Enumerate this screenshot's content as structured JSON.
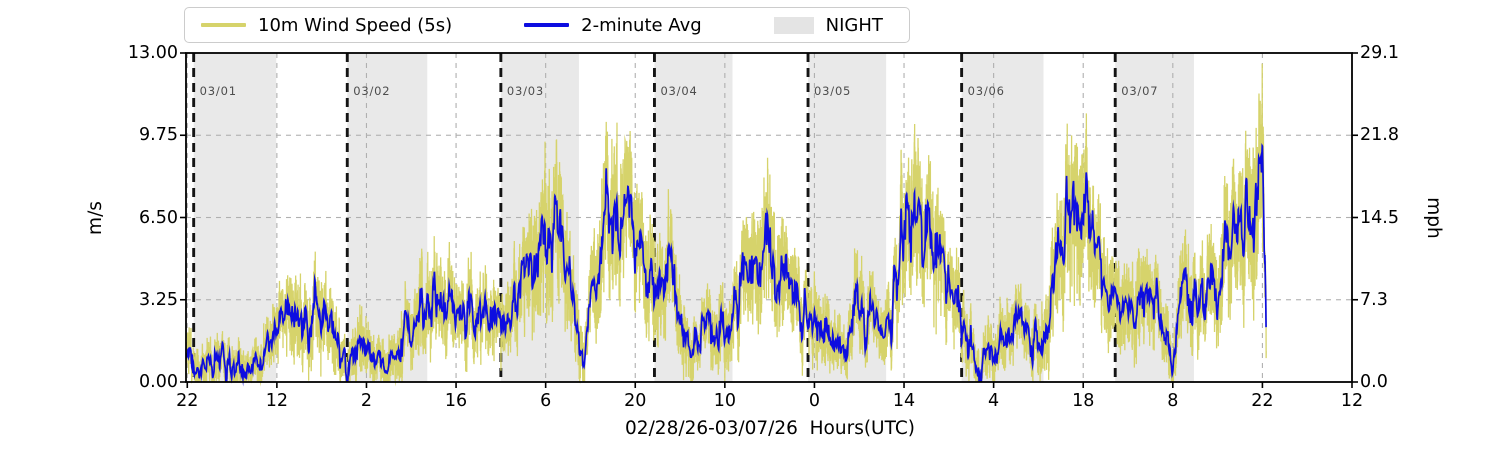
{
  "figure": {
    "kind": "wind-speed-timeseries"
  },
  "chart_data": {
    "type": "line",
    "title": "",
    "xlabel": "02/28/26-03/07/26  Hours(UTC)",
    "ylabel_left": "m/s",
    "ylabel_right": "mph",
    "night_label": "NIGHT",
    "legend_position": "top-outside",
    "grid": true,
    "ylim_left": [
      0,
      13
    ],
    "ylim_right": [
      0,
      29.1
    ],
    "xlim_hours_from_0228_0000utc": [
      21.8,
      204
    ],
    "x_ticks": {
      "t_hours": [
        22,
        36,
        50,
        64,
        78,
        92,
        106,
        120,
        134,
        148,
        162,
        176,
        190,
        204
      ],
      "labels": [
        "22",
        "12",
        "2",
        "16",
        "6",
        "20",
        "10",
        "0",
        "14",
        "4",
        "18",
        "8",
        "22",
        "12"
      ]
    },
    "y_ticks_left": {
      "values": [
        0,
        3.25,
        6.5,
        9.75,
        13
      ],
      "labels": [
        "0.00",
        "3.25",
        "6.50",
        "9.75",
        "13.00"
      ]
    },
    "y_ticks_right": {
      "values": [
        0,
        3.25,
        6.5,
        9.75,
        13
      ],
      "labels": [
        "0.0",
        "7.3",
        "14.5",
        "21.8",
        "29.1"
      ]
    },
    "gridline_values_left": [
      3.25,
      6.5,
      9.75
    ],
    "day_markers": [
      {
        "t_hours": 23,
        "label": "03/01"
      },
      {
        "t_hours": 47,
        "label": "03/02"
      },
      {
        "t_hours": 71,
        "label": "03/03"
      },
      {
        "t_hours": 95,
        "label": "03/04"
      },
      {
        "t_hours": 119,
        "label": "03/05"
      },
      {
        "t_hours": 143,
        "label": "03/06"
      },
      {
        "t_hours": 167,
        "label": "03/07"
      }
    ],
    "night_spans_hours": [
      [
        23,
        35.9
      ],
      [
        47,
        59.5
      ],
      [
        71,
        83.2
      ],
      [
        95,
        107.2
      ],
      [
        119,
        131.2
      ],
      [
        143,
        155.8
      ],
      [
        167,
        179.3
      ]
    ],
    "series": [
      {
        "name": "10m Wind Speed (5s)",
        "color": "#d6d36b",
        "role": "raw-gusts-envelope-of-avg"
      },
      {
        "name": "2-minute Avg",
        "color": "#0d0de0",
        "role": "average",
        "units": "m/s",
        "data_end_hours": 190.6,
        "anchors_t_hours": [
          21.8,
          22,
          23,
          24,
          25,
          26,
          27,
          28,
          29,
          30,
          31,
          32,
          33,
          34,
          35,
          36,
          37,
          38,
          39,
          40,
          41,
          42,
          43,
          44,
          45,
          46,
          47,
          48,
          49,
          50,
          51,
          52,
          53,
          54,
          55,
          56,
          57,
          58,
          59,
          60,
          61,
          62,
          63,
          64,
          65,
          66,
          67,
          68,
          69,
          70,
          71,
          72,
          73,
          74,
          75,
          76,
          77,
          78,
          79,
          80,
          81,
          82,
          83,
          84,
          85,
          86,
          87,
          88,
          89,
          90,
          91,
          92,
          93,
          94,
          95,
          96,
          97,
          98,
          99,
          100,
          101,
          102,
          103,
          104,
          105,
          106,
          107,
          108,
          109,
          110,
          111,
          112,
          113,
          114,
          115,
          116,
          117,
          118,
          119,
          120,
          121,
          122,
          123,
          124,
          125,
          126,
          127,
          128,
          129,
          130,
          131,
          132,
          133,
          134,
          135,
          136,
          137,
          138,
          139,
          140,
          141,
          142,
          143,
          144,
          145,
          146,
          147,
          148,
          149,
          150,
          151,
          152,
          153,
          154,
          155,
          156,
          157,
          158,
          159,
          160,
          161,
          162,
          163,
          164,
          165,
          166,
          167,
          168,
          169,
          170,
          171,
          172,
          173,
          174,
          175,
          176,
          177,
          178,
          179,
          180,
          181,
          182,
          183,
          184,
          185,
          186,
          187,
          188,
          189,
          190,
          190.4,
          190.6
        ],
        "anchors_v_ms": [
          1.3,
          1.0,
          0.6,
          0.8,
          0.4,
          0.7,
          1.0,
          0.6,
          0.4,
          0.7,
          0.5,
          0.4,
          0.8,
          1.1,
          1.4,
          1.7,
          2.4,
          3.0,
          2.6,
          3.1,
          2.2,
          3.2,
          2.8,
          2.0,
          2.4,
          1.1,
          0.5,
          1.5,
          1.7,
          1.0,
          0.6,
          0.5,
          0.7,
          0.8,
          1.5,
          2.4,
          1.7,
          2.7,
          3.3,
          2.9,
          3.3,
          2.6,
          3.1,
          3.0,
          2.3,
          2.9,
          2.4,
          2.6,
          2.1,
          2.7,
          2.2,
          1.7,
          2.9,
          3.6,
          4.3,
          4.9,
          5.7,
          6.6,
          6.1,
          5.3,
          4.8,
          4.0,
          2.2,
          1.0,
          2.9,
          4.5,
          5.9,
          7.3,
          6.2,
          5.6,
          6.3,
          5.1,
          4.5,
          4.1,
          4.0,
          4.3,
          4.5,
          4.4,
          3.2,
          2.0,
          1.8,
          1.7,
          1.9,
          2.1,
          2.2,
          2.3,
          2.0,
          3.4,
          4.2,
          3.8,
          4.5,
          5.0,
          5.2,
          4.6,
          4.2,
          3.6,
          3.2,
          2.8,
          2.6,
          2.0,
          2.4,
          2.1,
          1.5,
          1.2,
          0.8,
          3.3,
          2.6,
          2.2,
          2.5,
          2.0,
          1.7,
          2.5,
          4.6,
          7.0,
          5.8,
          6.4,
          5.7,
          6.8,
          5.3,
          4.3,
          3.6,
          3.0,
          2.4,
          1.9,
          0.7,
          0.5,
          1.3,
          1.1,
          1.7,
          2.4,
          1.8,
          2.3,
          1.6,
          1.3,
          1.8,
          2.2,
          3.3,
          4.9,
          6.3,
          6.9,
          6.6,
          7.1,
          6.3,
          4.7,
          3.9,
          3.5,
          3.0,
          2.7,
          3.3,
          2.8,
          4.1,
          3.2,
          3.5,
          2.7,
          1.9,
          0.7,
          3.0,
          3.7,
          3.3,
          3.6,
          3.1,
          3.9,
          3.4,
          4.7,
          5.1,
          5.7,
          6.4,
          6.9,
          7.3,
          7.8,
          4.5,
          1.5
        ]
      }
    ],
    "colors": {
      "night_band": "#e9e9e9",
      "gridline": "#b0b0b0",
      "day_marker_line": "#141414",
      "axis": "#000000"
    }
  }
}
